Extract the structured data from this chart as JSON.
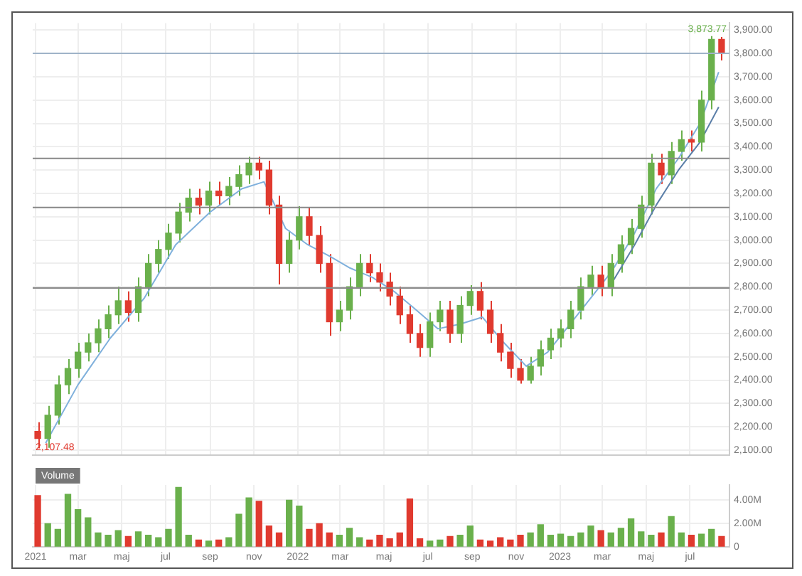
{
  "chart_data": [
    {
      "type": "candlestick",
      "x": [
        "2021-01-04",
        "2021-01-18",
        "2021-02-01",
        "2021-02-15",
        "2021-03-01",
        "2021-03-15",
        "2021-03-29",
        "2021-04-12",
        "2021-04-26",
        "2021-05-10",
        "2021-05-24",
        "2021-06-07",
        "2021-06-21",
        "2021-07-05",
        "2021-07-19",
        "2021-08-02",
        "2021-08-16",
        "2021-08-30",
        "2021-09-13",
        "2021-09-27",
        "2021-10-11",
        "2021-10-25",
        "2021-11-08",
        "2021-11-22",
        "2021-12-06",
        "2021-12-20",
        "2022-01-03",
        "2022-01-17",
        "2022-01-31",
        "2022-02-14",
        "2022-02-28",
        "2022-03-14",
        "2022-03-28",
        "2022-04-11",
        "2022-04-25",
        "2022-05-09",
        "2022-05-23",
        "2022-06-06",
        "2022-06-20",
        "2022-07-04",
        "2022-07-18",
        "2022-08-01",
        "2022-08-15",
        "2022-08-29",
        "2022-09-12",
        "2022-09-26",
        "2022-10-10",
        "2022-10-24",
        "2022-11-07",
        "2022-11-21",
        "2022-12-05",
        "2022-12-19",
        "2023-01-02",
        "2023-01-16",
        "2023-01-30",
        "2023-02-13",
        "2023-02-27",
        "2023-03-13",
        "2023-03-27",
        "2023-04-10",
        "2023-04-24",
        "2023-05-08",
        "2023-05-22",
        "2023-06-05",
        "2023-06-19",
        "2023-07-03",
        "2023-07-17",
        "2023-07-31",
        "2023-08-14"
      ],
      "ohlc": [
        [
          2180,
          2220,
          2107.48,
          2150
        ],
        [
          2150,
          2290,
          2110,
          2250
        ],
        [
          2250,
          2420,
          2210,
          2380
        ],
        [
          2380,
          2490,
          2340,
          2450
        ],
        [
          2450,
          2560,
          2410,
          2520
        ],
        [
          2520,
          2600,
          2480,
          2560
        ],
        [
          2560,
          2660,
          2520,
          2620
        ],
        [
          2620,
          2720,
          2580,
          2680
        ],
        [
          2680,
          2800,
          2640,
          2740
        ],
        [
          2740,
          2780,
          2650,
          2690
        ],
        [
          2690,
          2840,
          2650,
          2800
        ],
        [
          2800,
          2940,
          2760,
          2900
        ],
        [
          2900,
          3000,
          2860,
          2960
        ],
        [
          2960,
          3070,
          2920,
          3030
        ],
        [
          3030,
          3160,
          2990,
          3120
        ],
        [
          3120,
          3220,
          3080,
          3180
        ],
        [
          3180,
          3220,
          3110,
          3150
        ],
        [
          3150,
          3250,
          3110,
          3210
        ],
        [
          3210,
          3250,
          3150,
          3190
        ],
        [
          3190,
          3270,
          3150,
          3230
        ],
        [
          3230,
          3320,
          3190,
          3280
        ],
        [
          3280,
          3357,
          3240,
          3330
        ],
        [
          3330,
          3357,
          3260,
          3300
        ],
        [
          3300,
          3340,
          3110,
          3150
        ],
        [
          3150,
          3190,
          2810,
          2900
        ],
        [
          2900,
          3040,
          2860,
          3000
        ],
        [
          3000,
          3145,
          2960,
          3100
        ],
        [
          3100,
          3140,
          2980,
          3020
        ],
        [
          3020,
          3060,
          2860,
          2900
        ],
        [
          2900,
          2940,
          2590,
          2650
        ],
        [
          2650,
          2740,
          2610,
          2700
        ],
        [
          2700,
          2840,
          2660,
          2800
        ],
        [
          2800,
          2940,
          2760,
          2900
        ],
        [
          2900,
          2940,
          2820,
          2860
        ],
        [
          2860,
          2900,
          2780,
          2820
        ],
        [
          2820,
          2860,
          2720,
          2760
        ],
        [
          2760,
          2800,
          2640,
          2680
        ],
        [
          2680,
          2720,
          2560,
          2600
        ],
        [
          2600,
          2640,
          2500,
          2540
        ],
        [
          2540,
          2690,
          2500,
          2650
        ],
        [
          2650,
          2740,
          2610,
          2700
        ],
        [
          2700,
          2740,
          2560,
          2600
        ],
        [
          2600,
          2760,
          2560,
          2720
        ],
        [
          2720,
          2807,
          2680,
          2780
        ],
        [
          2780,
          2820,
          2660,
          2700
        ],
        [
          2700,
          2740,
          2560,
          2600
        ],
        [
          2600,
          2640,
          2480,
          2520
        ],
        [
          2520,
          2560,
          2410,
          2450
        ],
        [
          2450,
          2490,
          2385,
          2400
        ],
        [
          2400,
          2500,
          2385,
          2460
        ],
        [
          2460,
          2570,
          2420,
          2530
        ],
        [
          2530,
          2620,
          2490,
          2580
        ],
        [
          2580,
          2660,
          2540,
          2620
        ],
        [
          2620,
          2740,
          2580,
          2700
        ],
        [
          2700,
          2840,
          2660,
          2800
        ],
        [
          2800,
          2890,
          2760,
          2850
        ],
        [
          2850,
          2890,
          2760,
          2800
        ],
        [
          2800,
          2940,
          2760,
          2900
        ],
        [
          2900,
          3020,
          2860,
          2980
        ],
        [
          2980,
          3090,
          2940,
          3050
        ],
        [
          3050,
          3190,
          3010,
          3150
        ],
        [
          3150,
          3370,
          3110,
          3330
        ],
        [
          3330,
          3370,
          3240,
          3280
        ],
        [
          3280,
          3420,
          3240,
          3380
        ],
        [
          3380,
          3470,
          3340,
          3430
        ],
        [
          3430,
          3470,
          3380,
          3420
        ],
        [
          3420,
          3640,
          3380,
          3600
        ],
        [
          3600,
          3873.77,
          3560,
          3860
        ],
        [
          3860,
          3870,
          3770,
          3800
        ]
      ],
      "colors": [
        "#e03a2f",
        "#6ab04c",
        "#6ab04c",
        "#6ab04c",
        "#6ab04c",
        "#6ab04c",
        "#6ab04c",
        "#6ab04c",
        "#6ab04c",
        "#e03a2f",
        "#6ab04c",
        "#6ab04c",
        "#6ab04c",
        "#6ab04c",
        "#6ab04c",
        "#6ab04c",
        "#e03a2f",
        "#6ab04c",
        "#e03a2f",
        "#6ab04c",
        "#6ab04c",
        "#6ab04c",
        "#e03a2f",
        "#e03a2f",
        "#e03a2f",
        "#6ab04c",
        "#6ab04c",
        "#e03a2f",
        "#e03a2f",
        "#e03a2f",
        "#6ab04c",
        "#6ab04c",
        "#6ab04c",
        "#e03a2f",
        "#e03a2f",
        "#e03a2f",
        "#e03a2f",
        "#e03a2f",
        "#e03a2f",
        "#6ab04c",
        "#6ab04c",
        "#e03a2f",
        "#6ab04c",
        "#6ab04c",
        "#e03a2f",
        "#e03a2f",
        "#e03a2f",
        "#e03a2f",
        "#e03a2f",
        "#6ab04c",
        "#6ab04c",
        "#6ab04c",
        "#6ab04c",
        "#6ab04c",
        "#6ab04c",
        "#6ab04c",
        "#e03a2f",
        "#6ab04c",
        "#6ab04c",
        "#6ab04c",
        "#6ab04c",
        "#6ab04c",
        "#e03a2f",
        "#6ab04c",
        "#6ab04c",
        "#e03a2f",
        "#6ab04c",
        "#6ab04c",
        "#e03a2f"
      ],
      "series": [
        {
          "type": "line",
          "color": "#7fb0dc",
          "x": [
            "2021-01-15",
            "2021-03-01",
            "2021-04-15",
            "2021-06-01",
            "2021-07-15",
            "2021-09-01",
            "2021-10-15",
            "2021-11-15",
            "2021-12-15",
            "2022-01-15",
            "2022-02-15",
            "2022-03-15",
            "2022-04-15",
            "2022-05-15",
            "2022-06-15",
            "2022-07-15",
            "2022-08-15",
            "2022-09-15",
            "2022-10-15",
            "2022-11-15",
            "2022-12-15",
            "2023-01-15",
            "2023-02-15",
            "2023-03-15",
            "2023-04-15",
            "2023-05-15",
            "2023-06-15",
            "2023-07-15",
            "2023-08-10"
          ],
          "values": [
            2130,
            2380,
            2580,
            2750,
            2980,
            3120,
            3220,
            3250,
            3050,
            2980,
            2930,
            2880,
            2840,
            2780,
            2700,
            2620,
            2640,
            2670,
            2560,
            2460,
            2520,
            2640,
            2760,
            2870,
            3030,
            3220,
            3350,
            3500,
            3720
          ]
        },
        {
          "type": "line",
          "color": "#5b7fa8",
          "x": [
            "2023-03-15",
            "2023-04-15",
            "2023-05-15",
            "2023-06-15",
            "2023-07-15",
            "2023-08-10"
          ],
          "values": [
            2820,
            2980,
            3150,
            3300,
            3420,
            3570
          ]
        }
      ],
      "marker": "none",
      "ref_lines": [
        {
          "axis": "y",
          "value": 3800,
          "color": "#9fb3c8"
        },
        {
          "axis": "y",
          "value": 3350,
          "color": "#888888"
        },
        {
          "axis": "y",
          "value": 3140,
          "color": "#888888"
        },
        {
          "axis": "y",
          "value": 2795,
          "color": "#888888"
        }
      ],
      "annotations": [
        {
          "text": "3,873.77",
          "x": "2023-07-31",
          "y": 3873.77
        },
        {
          "text": "2,107.48",
          "x": "2021-01-04",
          "y": 2107.48
        }
      ],
      "xlim": [
        "2020-12-28",
        "2023-08-25"
      ],
      "xticks": [
        {
          "value": "2021-01-01",
          "label": null
        },
        {
          "value": "2021-03-01",
          "label": null
        },
        {
          "value": "2021-05-01",
          "label": null
        },
        {
          "value": "2021-07-01",
          "label": null
        },
        {
          "value": "2021-09-01",
          "label": null
        },
        {
          "value": "2021-11-01",
          "label": null
        },
        {
          "value": "2022-01-01",
          "label": null
        },
        {
          "value": "2022-03-01",
          "label": null
        },
        {
          "value": "2022-05-01",
          "label": null
        },
        {
          "value": "2022-07-01",
          "label": null
        },
        {
          "value": "2022-09-01",
          "label": null
        },
        {
          "value": "2022-11-01",
          "label": null
        },
        {
          "value": "2023-01-01",
          "label": null
        },
        {
          "value": "2023-03-01",
          "label": null
        },
        {
          "value": "2023-05-01",
          "label": null
        },
        {
          "value": "2023-07-01",
          "label": null
        }
      ],
      "ylim": [
        2080,
        3930
      ],
      "yticks": [
        {
          "value": 2100,
          "label": "2,100.00"
        },
        {
          "value": 2200,
          "label": "2,200.00"
        },
        {
          "value": 2300,
          "label": "2,300.00"
        },
        {
          "value": 2400,
          "label": "2,400.00"
        },
        {
          "value": 2500,
          "label": "2,500.00"
        },
        {
          "value": 2600,
          "label": "2,600.00"
        },
        {
          "value": 2700,
          "label": "2,700.00"
        },
        {
          "value": 2800,
          "label": "2,800.00"
        },
        {
          "value": 2900,
          "label": "2,900.00"
        },
        {
          "value": 3000,
          "label": "3,000.00"
        },
        {
          "value": 3100,
          "label": "3,100.00"
        },
        {
          "value": 3200,
          "label": "3,200.00"
        },
        {
          "value": 3300,
          "label": "3,300.00"
        },
        {
          "value": 3400,
          "label": "3,400.00"
        },
        {
          "value": 3500,
          "label": "3,500.00"
        },
        {
          "value": 3600,
          "label": "3,600.00"
        },
        {
          "value": 3700,
          "label": "3,700.00"
        },
        {
          "value": 3800,
          "label": "3,800.00"
        },
        {
          "value": 3900,
          "label": "3,900.00"
        }
      ],
      "grid": true,
      "tick_labels": "y"
    },
    {
      "type": "bar",
      "title": "Volume",
      "x": [
        "2021-01-04",
        "2021-01-18",
        "2021-02-01",
        "2021-02-15",
        "2021-03-01",
        "2021-03-15",
        "2021-03-29",
        "2021-04-12",
        "2021-04-26",
        "2021-05-10",
        "2021-05-24",
        "2021-06-07",
        "2021-06-21",
        "2021-07-05",
        "2021-07-19",
        "2021-08-02",
        "2021-08-16",
        "2021-08-30",
        "2021-09-13",
        "2021-09-27",
        "2021-10-11",
        "2021-10-25",
        "2021-11-08",
        "2021-11-22",
        "2021-12-06",
        "2021-12-20",
        "2022-01-03",
        "2022-01-17",
        "2022-01-31",
        "2022-02-14",
        "2022-02-28",
        "2022-03-14",
        "2022-03-28",
        "2022-04-11",
        "2022-04-25",
        "2022-05-09",
        "2022-05-23",
        "2022-06-06",
        "2022-06-20",
        "2022-07-04",
        "2022-07-18",
        "2022-08-01",
        "2022-08-15",
        "2022-08-29",
        "2022-09-12",
        "2022-09-26",
        "2022-10-10",
        "2022-10-24",
        "2022-11-07",
        "2022-11-21",
        "2022-12-05",
        "2022-12-19",
        "2023-01-02",
        "2023-01-16",
        "2023-01-30",
        "2023-02-13",
        "2023-02-27",
        "2023-03-13",
        "2023-03-27",
        "2023-04-10",
        "2023-04-24",
        "2023-05-08",
        "2023-05-22",
        "2023-06-05",
        "2023-06-19",
        "2023-07-03",
        "2023-07-17",
        "2023-07-31",
        "2023-08-14"
      ],
      "values": [
        4.4,
        2.0,
        1.5,
        4.5,
        3.2,
        2.5,
        1.2,
        1.0,
        1.4,
        0.9,
        1.3,
        1.0,
        0.8,
        1.5,
        5.1,
        1.0,
        0.6,
        0.5,
        0.6,
        0.8,
        2.8,
        4.2,
        3.9,
        1.8,
        1.2,
        4.0,
        3.5,
        1.5,
        2.0,
        1.2,
        1.0,
        1.6,
        0.8,
        0.6,
        1.0,
        0.7,
        1.2,
        4.1,
        0.7,
        0.5,
        0.6,
        0.9,
        1.0,
        1.8,
        0.6,
        0.5,
        0.8,
        0.6,
        1.0,
        1.2,
        1.9,
        1.0,
        1.1,
        0.9,
        1.2,
        1.8,
        1.4,
        1.2,
        1.6,
        2.4,
        1.3,
        1.0,
        1.2,
        2.6,
        1.2,
        1.0,
        1.1,
        1.5,
        0.9
      ],
      "colors": [
        "#e03a2f",
        "#6ab04c",
        "#6ab04c",
        "#6ab04c",
        "#6ab04c",
        "#6ab04c",
        "#6ab04c",
        "#6ab04c",
        "#6ab04c",
        "#e03a2f",
        "#6ab04c",
        "#6ab04c",
        "#6ab04c",
        "#6ab04c",
        "#6ab04c",
        "#6ab04c",
        "#e03a2f",
        "#6ab04c",
        "#e03a2f",
        "#6ab04c",
        "#6ab04c",
        "#6ab04c",
        "#e03a2f",
        "#e03a2f",
        "#e03a2f",
        "#6ab04c",
        "#6ab04c",
        "#e03a2f",
        "#e03a2f",
        "#e03a2f",
        "#6ab04c",
        "#6ab04c",
        "#6ab04c",
        "#e03a2f",
        "#e03a2f",
        "#e03a2f",
        "#e03a2f",
        "#e03a2f",
        "#e03a2f",
        "#6ab04c",
        "#6ab04c",
        "#e03a2f",
        "#6ab04c",
        "#6ab04c",
        "#e03a2f",
        "#e03a2f",
        "#e03a2f",
        "#e03a2f",
        "#e03a2f",
        "#6ab04c",
        "#6ab04c",
        "#6ab04c",
        "#6ab04c",
        "#6ab04c",
        "#6ab04c",
        "#6ab04c",
        "#e03a2f",
        "#6ab04c",
        "#6ab04c",
        "#6ab04c",
        "#6ab04c",
        "#6ab04c",
        "#e03a2f",
        "#6ab04c",
        "#6ab04c",
        "#e03a2f",
        "#6ab04c",
        "#6ab04c",
        "#e03a2f"
      ],
      "xlim": [
        "2020-12-28",
        "2023-08-25"
      ],
      "xticks": [
        {
          "value": "2021-01-01",
          "label": "2021"
        },
        {
          "value": "2021-03-01",
          "label": "mar"
        },
        {
          "value": "2021-05-01",
          "label": "maj"
        },
        {
          "value": "2021-07-01",
          "label": "jul"
        },
        {
          "value": "2021-09-01",
          "label": "sep"
        },
        {
          "value": "2021-11-01",
          "label": "nov"
        },
        {
          "value": "2022-01-01",
          "label": "2022"
        },
        {
          "value": "2022-03-01",
          "label": "mar"
        },
        {
          "value": "2022-05-01",
          "label": "maj"
        },
        {
          "value": "2022-07-01",
          "label": "jul"
        },
        {
          "value": "2022-09-01",
          "label": "sep"
        },
        {
          "value": "2022-11-01",
          "label": "nov"
        },
        {
          "value": "2023-01-01",
          "label": "2023"
        },
        {
          "value": "2023-03-01",
          "label": "mar"
        },
        {
          "value": "2023-05-01",
          "label": "maj"
        },
        {
          "value": "2023-07-01",
          "label": "jul"
        }
      ],
      "ylim": [
        0,
        5.3
      ],
      "yticks": [
        {
          "value": 0,
          "label": "0"
        },
        {
          "value": 2,
          "label": "2.00M"
        },
        {
          "value": 4,
          "label": "4.00M"
        }
      ],
      "grid": true
    }
  ]
}
